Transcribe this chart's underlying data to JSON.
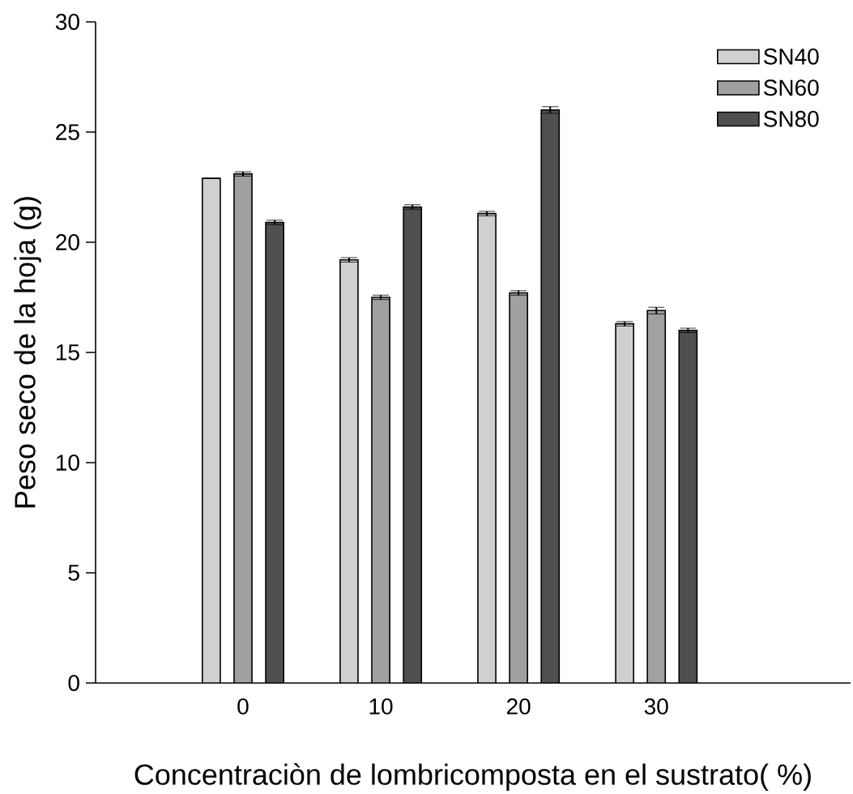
{
  "chart_data": {
    "type": "bar",
    "xlabel": "Concentraciòn de lombricomposta en el sustrato( %)",
    "ylabel": "Peso seco de la hoja (g)",
    "categories": [
      "0",
      "10",
      "20",
      "30"
    ],
    "series": [
      {
        "name": "SN40",
        "color": "#d0d0d0",
        "values": [
          22.9,
          19.2,
          21.3,
          16.3
        ],
        "errors": [
          null,
          0.1,
          0.1,
          0.1
        ]
      },
      {
        "name": "SN60",
        "color": "#a0a0a0",
        "values": [
          23.1,
          17.5,
          17.7,
          16.9
        ],
        "errors": [
          0.1,
          0.1,
          0.1,
          0.15
        ]
      },
      {
        "name": "SN80",
        "color": "#505050",
        "values": [
          20.9,
          21.6,
          26.0,
          16.0
        ],
        "errors": [
          0.1,
          0.1,
          0.15,
          0.1
        ]
      }
    ],
    "ylim": [
      0,
      30
    ],
    "yticks": [
      0,
      5,
      10,
      15,
      20,
      25,
      30
    ],
    "grid": false,
    "legend": "top right"
  }
}
